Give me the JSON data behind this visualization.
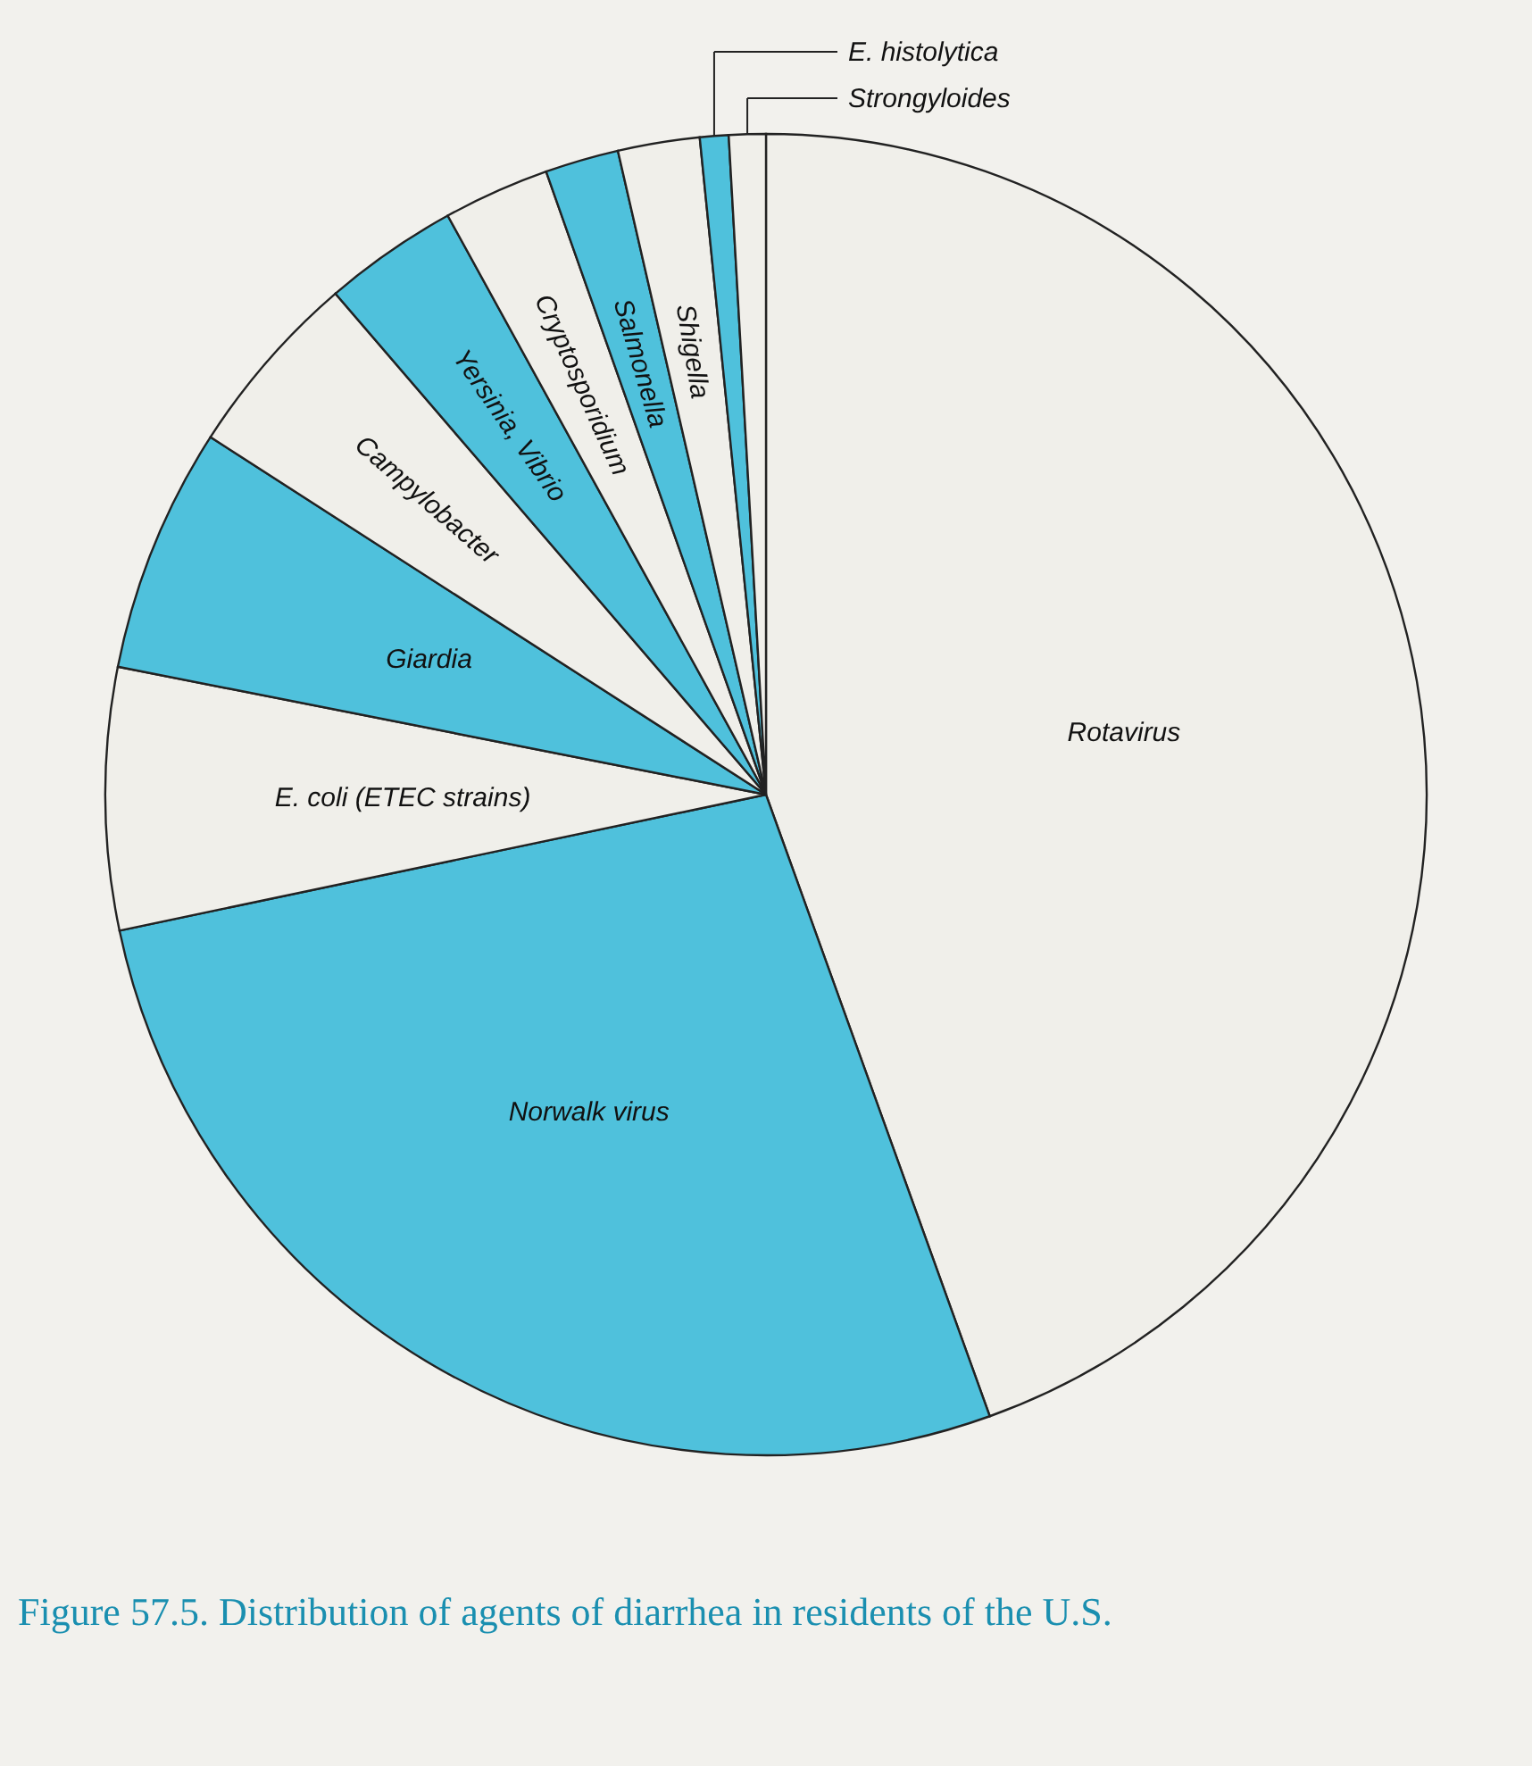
{
  "chart_data": {
    "type": "pie",
    "title": "Figure 57.5. Distribution of agents of diarrhea in residents of the U.S.",
    "categories": [
      "Rotavirus",
      "Norwalk virus",
      "E. coli (ETEC strains)",
      "Giardia",
      "Campylobacter",
      "Yersinia, Vibrio",
      "Cryptosporidium",
      "Salmonella",
      "Shigella",
      "E. histolytica",
      "Strongyloides"
    ],
    "values": [
      44.5,
      27.2,
      6.4,
      6.0,
      4.6,
      3.3,
      2.6,
      1.8,
      2.0,
      0.7,
      0.9
    ],
    "colors": [
      "#f0efea",
      "#4fc1dc",
      "#f0efea",
      "#4fc1dc",
      "#f0efea",
      "#4fc1dc",
      "#f0efea",
      "#4fc1dc",
      "#f0efea",
      "#4fc1dc",
      "#f0efea"
    ]
  }
}
